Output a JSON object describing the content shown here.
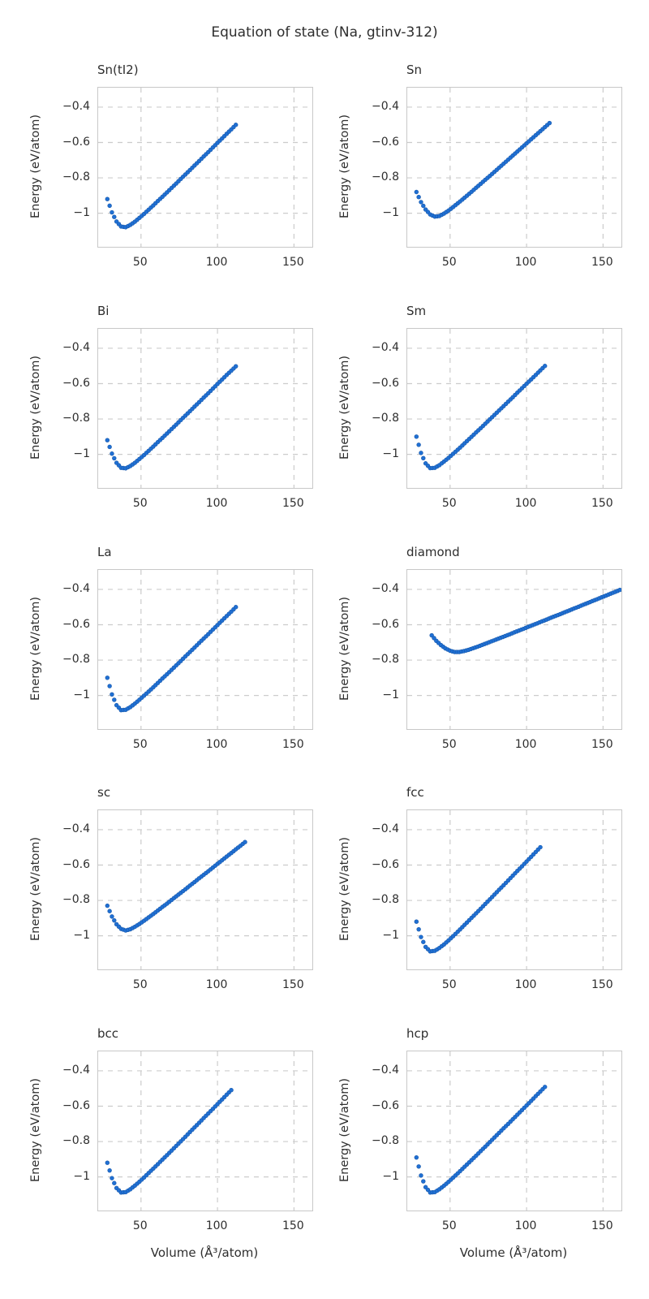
{
  "figure": {
    "title": "Equation of state (Na, gtinv-312)",
    "xlabel": "Volume (Å³/atom)",
    "ylabel": "Energy (eV/atom)",
    "colors": {
      "marker_fill": "#2070d4",
      "marker_edge": "#1859ab",
      "grid": "#cccccc",
      "frame": "#c8c8c8",
      "text": "#2e2e2e"
    }
  },
  "axes": {
    "x_range": [
      22,
      162
    ],
    "y_range": [
      -1.19,
      -0.29
    ],
    "x_ticks": [
      50,
      100,
      150
    ],
    "y_ticks": [
      -0.4,
      -0.6,
      -0.8,
      -1.0
    ],
    "grid": "dashed",
    "legend": "none"
  },
  "chart_data": [
    {
      "type": "scatter",
      "title": "Sn(tI2)",
      "xlabel": "Volume (Å³/atom)",
      "ylabel": "Energy (eV/atom)",
      "points": [
        [
          28,
          -0.92
        ],
        [
          31,
          -0.995
        ],
        [
          34,
          -1.047
        ],
        [
          37,
          -1.075
        ],
        [
          40,
          -1.079
        ],
        [
          43,
          -1.066
        ],
        [
          46,
          -1.048
        ],
        [
          49,
          -1.026
        ],
        [
          52,
          -1.004
        ],
        [
          55,
          -0.98
        ],
        [
          58,
          -0.956
        ],
        [
          61,
          -0.931
        ],
        [
          64,
          -0.907
        ],
        [
          67,
          -0.882
        ],
        [
          70,
          -0.857
        ],
        [
          73,
          -0.832
        ],
        [
          76,
          -0.806
        ],
        [
          79,
          -0.781
        ],
        [
          82,
          -0.756
        ],
        [
          85,
          -0.73
        ],
        [
          88,
          -0.705
        ],
        [
          91,
          -0.679
        ],
        [
          94,
          -0.654
        ],
        [
          97,
          -0.628
        ],
        [
          100,
          -0.602
        ],
        [
          103,
          -0.577
        ],
        [
          106,
          -0.551
        ],
        [
          109,
          -0.526
        ],
        [
          112,
          -0.5
        ]
      ]
    },
    {
      "type": "scatter",
      "title": "Sn",
      "xlabel": "Volume (Å³/atom)",
      "ylabel": "Energy (eV/atom)",
      "points": [
        [
          28,
          -0.88
        ],
        [
          31,
          -0.937
        ],
        [
          34,
          -0.979
        ],
        [
          37,
          -1.007
        ],
        [
          40,
          -1.019
        ],
        [
          43,
          -1.016
        ],
        [
          46,
          -1.002
        ],
        [
          49,
          -0.985
        ],
        [
          52,
          -0.965
        ],
        [
          55,
          -0.944
        ],
        [
          58,
          -0.923
        ],
        [
          61,
          -0.901
        ],
        [
          64,
          -0.879
        ],
        [
          67,
          -0.856
        ],
        [
          70,
          -0.834
        ],
        [
          73,
          -0.811
        ],
        [
          76,
          -0.789
        ],
        [
          79,
          -0.766
        ],
        [
          82,
          -0.743
        ],
        [
          85,
          -0.72
        ],
        [
          88,
          -0.697
        ],
        [
          91,
          -0.674
        ],
        [
          94,
          -0.651
        ],
        [
          97,
          -0.628
        ],
        [
          100,
          -0.605
        ],
        [
          103,
          -0.582
        ],
        [
          106,
          -0.559
        ],
        [
          109,
          -0.536
        ],
        [
          112,
          -0.513
        ],
        [
          115,
          -0.49
        ]
      ]
    },
    {
      "type": "scatter",
      "title": "Bi",
      "xlabel": "Volume (Å³/atom)",
      "ylabel": "Energy (eV/atom)",
      "points": [
        [
          28,
          -0.92
        ],
        [
          31,
          -0.996
        ],
        [
          34,
          -1.048
        ],
        [
          37,
          -1.076
        ],
        [
          40,
          -1.079
        ],
        [
          43,
          -1.066
        ],
        [
          46,
          -1.048
        ],
        [
          49,
          -1.026
        ],
        [
          52,
          -1.004
        ],
        [
          55,
          -0.98
        ],
        [
          58,
          -0.956
        ],
        [
          61,
          -0.931
        ],
        [
          64,
          -0.907
        ],
        [
          67,
          -0.882
        ],
        [
          70,
          -0.857
        ],
        [
          73,
          -0.832
        ],
        [
          76,
          -0.806
        ],
        [
          79,
          -0.781
        ],
        [
          82,
          -0.756
        ],
        [
          85,
          -0.73
        ],
        [
          88,
          -0.705
        ],
        [
          91,
          -0.679
        ],
        [
          94,
          -0.654
        ],
        [
          97,
          -0.628
        ],
        [
          100,
          -0.602
        ],
        [
          103,
          -0.577
        ],
        [
          106,
          -0.551
        ],
        [
          109,
          -0.527
        ],
        [
          112,
          -0.502
        ]
      ]
    },
    {
      "type": "scatter",
      "title": "Sm",
      "xlabel": "Volume (Å³/atom)",
      "ylabel": "Energy (eV/atom)",
      "points": [
        [
          28,
          -0.9
        ],
        [
          31,
          -0.992
        ],
        [
          34,
          -1.051
        ],
        [
          37,
          -1.078
        ],
        [
          40,
          -1.076
        ],
        [
          43,
          -1.061
        ],
        [
          46,
          -1.041
        ],
        [
          49,
          -1.02
        ],
        [
          52,
          -0.997
        ],
        [
          55,
          -0.974
        ],
        [
          58,
          -0.95
        ],
        [
          61,
          -0.925
        ],
        [
          64,
          -0.901
        ],
        [
          67,
          -0.876
        ],
        [
          70,
          -0.852
        ],
        [
          73,
          -0.827
        ],
        [
          76,
          -0.802
        ],
        [
          79,
          -0.777
        ],
        [
          82,
          -0.752
        ],
        [
          85,
          -0.727
        ],
        [
          88,
          -0.702
        ],
        [
          91,
          -0.677
        ],
        [
          94,
          -0.651
        ],
        [
          97,
          -0.626
        ],
        [
          100,
          -0.601
        ],
        [
          103,
          -0.576
        ],
        [
          106,
          -0.551
        ],
        [
          109,
          -0.525
        ],
        [
          112,
          -0.5
        ]
      ]
    },
    {
      "type": "scatter",
      "title": "La",
      "xlabel": "Volume (Å³/atom)",
      "ylabel": "Energy (eV/atom)",
      "points": [
        [
          28,
          -0.9
        ],
        [
          31,
          -0.994
        ],
        [
          34,
          -1.055
        ],
        [
          37,
          -1.083
        ],
        [
          40,
          -1.081
        ],
        [
          43,
          -1.066
        ],
        [
          46,
          -1.046
        ],
        [
          49,
          -1.024
        ],
        [
          52,
          -1.001
        ],
        [
          55,
          -0.978
        ],
        [
          58,
          -0.954
        ],
        [
          61,
          -0.929
        ],
        [
          64,
          -0.904
        ],
        [
          67,
          -0.88
        ],
        [
          70,
          -0.855
        ],
        [
          73,
          -0.83
        ],
        [
          76,
          -0.805
        ],
        [
          79,
          -0.779
        ],
        [
          82,
          -0.754
        ],
        [
          85,
          -0.729
        ],
        [
          88,
          -0.703
        ],
        [
          91,
          -0.678
        ],
        [
          94,
          -0.653
        ],
        [
          97,
          -0.627
        ],
        [
          100,
          -0.602
        ],
        [
          103,
          -0.576
        ],
        [
          106,
          -0.551
        ],
        [
          109,
          -0.526
        ],
        [
          112,
          -0.5
        ]
      ]
    },
    {
      "type": "scatter",
      "title": "diamond",
      "xlabel": "Volume (Å³/atom)",
      "ylabel": "Energy (eV/atom)",
      "points": [
        [
          38,
          -0.66
        ],
        [
          41,
          -0.691
        ],
        [
          44,
          -0.715
        ],
        [
          47,
          -0.734
        ],
        [
          50,
          -0.747
        ],
        [
          53,
          -0.754
        ],
        [
          56,
          -0.754
        ],
        [
          59,
          -0.749
        ],
        [
          62,
          -0.742
        ],
        [
          65,
          -0.733
        ],
        [
          68,
          -0.724
        ],
        [
          71,
          -0.714
        ],
        [
          74,
          -0.704
        ],
        [
          77,
          -0.694
        ],
        [
          80,
          -0.684
        ],
        [
          83,
          -0.674
        ],
        [
          86,
          -0.664
        ],
        [
          89,
          -0.654
        ],
        [
          92,
          -0.643
        ],
        [
          95,
          -0.633
        ],
        [
          98,
          -0.623
        ],
        [
          101,
          -0.612
        ],
        [
          104,
          -0.602
        ],
        [
          107,
          -0.592
        ],
        [
          110,
          -0.581
        ],
        [
          113,
          -0.571
        ],
        [
          116,
          -0.56
        ],
        [
          119,
          -0.55
        ],
        [
          122,
          -0.54
        ],
        [
          125,
          -0.529
        ],
        [
          128,
          -0.519
        ],
        [
          131,
          -0.508
        ],
        [
          134,
          -0.498
        ],
        [
          137,
          -0.487
        ],
        [
          140,
          -0.477
        ],
        [
          143,
          -0.466
        ],
        [
          146,
          -0.456
        ],
        [
          149,
          -0.445
        ],
        [
          152,
          -0.435
        ],
        [
          155,
          -0.424
        ],
        [
          158,
          -0.414
        ],
        [
          161,
          -0.403
        ]
      ]
    },
    {
      "type": "scatter",
      "title": "sc",
      "xlabel": "Volume (Å³/atom)",
      "ylabel": "Energy (eV/atom)",
      "points": [
        [
          28,
          -0.83
        ],
        [
          31,
          -0.891
        ],
        [
          34,
          -0.935
        ],
        [
          37,
          -0.961
        ],
        [
          40,
          -0.97
        ],
        [
          43,
          -0.963
        ],
        [
          46,
          -0.949
        ],
        [
          49,
          -0.933
        ],
        [
          52,
          -0.915
        ],
        [
          55,
          -0.896
        ],
        [
          58,
          -0.877
        ],
        [
          61,
          -0.857
        ],
        [
          64,
          -0.837
        ],
        [
          67,
          -0.818
        ],
        [
          70,
          -0.797
        ],
        [
          73,
          -0.777
        ],
        [
          76,
          -0.757
        ],
        [
          79,
          -0.737
        ],
        [
          82,
          -0.716
        ],
        [
          85,
          -0.696
        ],
        [
          88,
          -0.675
        ],
        [
          91,
          -0.655
        ],
        [
          94,
          -0.635
        ],
        [
          97,
          -0.614
        ],
        [
          100,
          -0.593
        ],
        [
          103,
          -0.573
        ],
        [
          106,
          -0.552
        ],
        [
          109,
          -0.532
        ],
        [
          112,
          -0.511
        ],
        [
          115,
          -0.491
        ],
        [
          118,
          -0.47
        ]
      ]
    },
    {
      "type": "scatter",
      "title": "fcc",
      "xlabel": "Volume (Å³/atom)",
      "ylabel": "Energy (eV/atom)",
      "points": [
        [
          28,
          -0.92
        ],
        [
          31,
          -1.007
        ],
        [
          34,
          -1.063
        ],
        [
          37,
          -1.088
        ],
        [
          40,
          -1.085
        ],
        [
          43,
          -1.069
        ],
        [
          46,
          -1.049
        ],
        [
          49,
          -1.026
        ],
        [
          52,
          -1.002
        ],
        [
          55,
          -0.977
        ],
        [
          58,
          -0.951
        ],
        [
          61,
          -0.925
        ],
        [
          64,
          -0.899
        ],
        [
          67,
          -0.873
        ],
        [
          70,
          -0.847
        ],
        [
          73,
          -0.82
        ],
        [
          76,
          -0.794
        ],
        [
          79,
          -0.767
        ],
        [
          82,
          -0.74
        ],
        [
          85,
          -0.714
        ],
        [
          88,
          -0.687
        ],
        [
          91,
          -0.66
        ],
        [
          94,
          -0.633
        ],
        [
          97,
          -0.607
        ],
        [
          100,
          -0.58
        ],
        [
          103,
          -0.553
        ],
        [
          106,
          -0.526
        ],
        [
          109,
          -0.499
        ]
      ]
    },
    {
      "type": "scatter",
      "title": "bcc",
      "xlabel": "Volume (Å³/atom)",
      "ylabel": "Energy (eV/atom)",
      "points": [
        [
          28,
          -0.92
        ],
        [
          31,
          -1.007
        ],
        [
          34,
          -1.063
        ],
        [
          37,
          -1.088
        ],
        [
          40,
          -1.086
        ],
        [
          43,
          -1.07
        ],
        [
          46,
          -1.049
        ],
        [
          49,
          -1.027
        ],
        [
          52,
          -1.003
        ],
        [
          55,
          -0.978
        ],
        [
          58,
          -0.953
        ],
        [
          61,
          -0.928
        ],
        [
          64,
          -0.902
        ],
        [
          67,
          -0.877
        ],
        [
          70,
          -0.851
        ],
        [
          73,
          -0.825
        ],
        [
          76,
          -0.799
        ],
        [
          79,
          -0.773
        ],
        [
          82,
          -0.746
        ],
        [
          85,
          -0.72
        ],
        [
          88,
          -0.694
        ],
        [
          91,
          -0.667
        ],
        [
          94,
          -0.641
        ],
        [
          97,
          -0.615
        ],
        [
          100,
          -0.588
        ],
        [
          103,
          -0.562
        ],
        [
          106,
          -0.535
        ],
        [
          109,
          -0.509
        ]
      ]
    },
    {
      "type": "scatter",
      "title": "hcp",
      "xlabel": "Volume (Å³/atom)",
      "ylabel": "Energy (eV/atom)",
      "points": [
        [
          28,
          -0.89
        ],
        [
          31,
          -0.992
        ],
        [
          34,
          -1.058
        ],
        [
          37,
          -1.088
        ],
        [
          40,
          -1.086
        ],
        [
          43,
          -1.07
        ],
        [
          46,
          -1.05
        ],
        [
          49,
          -1.028
        ],
        [
          52,
          -1.004
        ],
        [
          55,
          -0.98
        ],
        [
          58,
          -0.955
        ],
        [
          61,
          -0.93
        ],
        [
          64,
          -0.905
        ],
        [
          67,
          -0.88
        ],
        [
          70,
          -0.854
        ],
        [
          73,
          -0.829
        ],
        [
          76,
          -0.803
        ],
        [
          79,
          -0.777
        ],
        [
          82,
          -0.751
        ],
        [
          85,
          -0.725
        ],
        [
          88,
          -0.7
        ],
        [
          91,
          -0.674
        ],
        [
          94,
          -0.648
        ],
        [
          97,
          -0.622
        ],
        [
          100,
          -0.596
        ],
        [
          103,
          -0.57
        ],
        [
          106,
          -0.543
        ],
        [
          109,
          -0.517
        ],
        [
          112,
          -0.491
        ]
      ]
    }
  ]
}
